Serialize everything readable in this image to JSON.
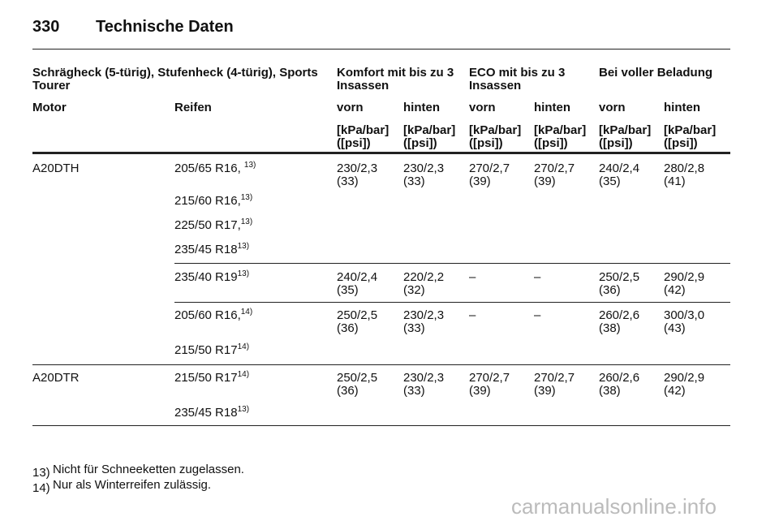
{
  "header": {
    "page_number": "330",
    "title": "Technische Daten"
  },
  "table": {
    "group_header": [
      "Schrägheck (5-türig), Stufenheck (4-türig), Sports Tourer",
      "Komfort mit bis zu 3 Insassen",
      "ECO mit bis zu 3 Insassen",
      "Bei voller Beladung"
    ],
    "column_header": [
      "Motor",
      "Reifen",
      "vorn",
      "hinten",
      "vorn",
      "hinten",
      "vorn",
      "hinten"
    ],
    "unit_header": [
      "[kPa/bar] ([psi])",
      "[kPa/bar] ([psi])",
      "[kPa/bar] ([psi])",
      "[kPa/bar] ([psi])",
      "[kPa/bar] ([psi])",
      "[kPa/bar] ([psi])"
    ],
    "groups": [
      {
        "engine": "A20DTH",
        "rows": [
          {
            "tire": "205/65 R16, ",
            "note": "13)",
            "values": [
              "230/2,3 (33)",
              "230/2,3 (33)",
              "270/2,7 (39)",
              "270/2,7 (39)",
              "240/2,4 (35)",
              "280/2,8 (41)"
            ]
          },
          {
            "tire": "215/60 R16,",
            "note": "13)"
          },
          {
            "tire": "225/50 R17,",
            "note": "13)"
          },
          {
            "tire": "235/45 R18",
            "note": "13)"
          },
          {
            "tire": "235/40 R19",
            "note": "13)",
            "values": [
              "240/2,4 (35)",
              "220/2,2 (32)",
              "–",
              "–",
              "250/2,5 (36)",
              "290/2,9 (42)"
            ]
          },
          {
            "tire": "205/60 R16,",
            "note": "14)",
            "values": [
              "250/2,5 (36)",
              "230/2,3 (33)",
              "–",
              "–",
              "260/2,6 (38)",
              "300/3,0 (43)"
            ]
          },
          {
            "tire": "215/50 R17",
            "note": "14)"
          }
        ]
      },
      {
        "engine": "A20DTR",
        "rows": [
          {
            "tire": "215/50 R17",
            "note": "14)",
            "values": [
              "250/2,5 (36)",
              "230/2,3 (33)",
              "270/2,7 (39)",
              "270/2,7 (39)",
              "260/2,6 (38)",
              "290/2,9 (42)"
            ]
          },
          {
            "tire": "235/45 R18",
            "note": "13)"
          }
        ]
      }
    ]
  },
  "footnotes": [
    {
      "marker": "13)",
      "text": "Nicht für Schneeketten zugelassen."
    },
    {
      "marker": "14)",
      "text": "Nur als Winterreifen zulässig."
    }
  ],
  "watermark": "carmanualsonline.info"
}
